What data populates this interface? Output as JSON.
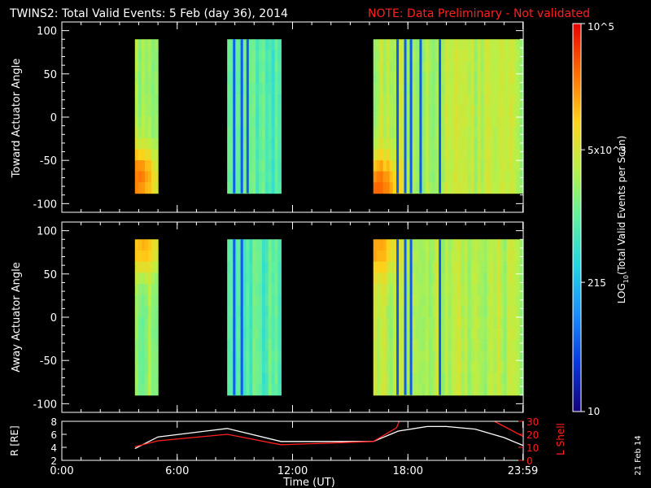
{
  "header": {
    "title": "TWINS2: Total Valid Events:  5 Feb (day  36), 2014",
    "note": "NOTE: Data Preliminary - Not validated",
    "note_color": "#ff2020"
  },
  "footer": {
    "xlabel": "Time (UT)",
    "side_date": "21 Feb 14"
  },
  "colorbar": {
    "label": "LOG10(Total Valid Events per Scan)",
    "ticks": [
      {
        "text": "10",
        "value": 10
      },
      {
        "text": "215",
        "value": 215
      },
      {
        "text": "5x10^3",
        "value": 5000
      },
      {
        "text": "10^5",
        "value": 100000
      }
    ],
    "stops": [
      "#14007a",
      "#0a36e0",
      "#1a8cff",
      "#20d6e0",
      "#5ff0a0",
      "#b8f048",
      "#ffd21a",
      "#ff6a00",
      "#e80000"
    ]
  },
  "chart_data": [
    {
      "type": "heatmap",
      "ylabel": "Toward Actuator Angle",
      "ylim": [
        -110,
        110
      ],
      "yticks": [
        -100,
        -50,
        0,
        50,
        100
      ],
      "xlim": [
        0,
        24
      ],
      "angle_range": [
        -88,
        90
      ],
      "scale": "log",
      "blocks": [
        {
          "start": 3.8,
          "end": 5.0,
          "level": 0.58
        },
        {
          "start": 8.6,
          "end": 11.4,
          "level": 0.48
        },
        {
          "start": 16.2,
          "end": 23.98,
          "level": 0.62
        }
      ],
      "hotspots": [
        {
          "time": 4.0,
          "angle": -70,
          "level": 0.86
        },
        {
          "time": 16.5,
          "angle": -80,
          "level": 0.88
        }
      ],
      "dropouts": [
        8.9,
        9.3,
        9.6,
        17.4,
        17.8,
        18.1,
        18.6,
        19.6
      ]
    },
    {
      "type": "heatmap",
      "ylabel": "Away Actuator Angle",
      "ylim": [
        -110,
        110
      ],
      "yticks": [
        -100,
        -50,
        0,
        50,
        100
      ],
      "xlim": [
        0,
        24
      ],
      "angle_range": [
        -90,
        90
      ],
      "scale": "log",
      "blocks": [
        {
          "start": 3.8,
          "end": 5.0,
          "level": 0.56
        },
        {
          "start": 8.6,
          "end": 11.4,
          "level": 0.48
        },
        {
          "start": 16.2,
          "end": 23.98,
          "level": 0.62
        }
      ],
      "hotspots": [
        {
          "time": 4.2,
          "angle": 80,
          "level": 0.78
        },
        {
          "time": 16.4,
          "angle": 80,
          "level": 0.8
        }
      ],
      "dropouts": [
        8.9,
        9.3,
        17.4,
        17.8,
        18.1,
        19.6
      ]
    },
    {
      "type": "line",
      "ylabel_left": "R [RE]",
      "ylabel_right": "L Shell",
      "ylim_left": [
        2,
        8
      ],
      "yticks_left": [
        2,
        4,
        6,
        8
      ],
      "ylim_right": [
        0,
        30
      ],
      "yticks_right": [
        0,
        10,
        20,
        30
      ],
      "x_ticks": [
        {
          "text": "0:00",
          "value": 0
        },
        {
          "text": "6:00",
          "value": 6
        },
        {
          "text": "12:00",
          "value": 12
        },
        {
          "text": "18:00",
          "value": 18
        },
        {
          "text": "23:59",
          "value": 23.98
        }
      ],
      "series": [
        {
          "axis": "left",
          "color": "#ffffff",
          "x": [
            3.8,
            5.0,
            8.6,
            11.4,
            16.2,
            17.5,
            19.0,
            20.0,
            21.5,
            23.0,
            23.98
          ],
          "y": [
            3.8,
            5.6,
            6.9,
            4.9,
            4.9,
            6.5,
            7.2,
            7.2,
            6.8,
            5.5,
            4.3
          ]
        },
        {
          "axis": "right",
          "color": "#ff2020",
          "x": [
            3.8,
            5.0,
            8.6,
            11.4,
            16.2,
            17.4,
            17.55
          ],
          "y": [
            10.5,
            15.0,
            20.0,
            12.0,
            14.5,
            25.0,
            30.0
          ]
        },
        {
          "axis": "right",
          "color": "#ff2020",
          "x": [
            22.5,
            23.98
          ],
          "y": [
            30.0,
            18.5
          ]
        }
      ]
    }
  ]
}
